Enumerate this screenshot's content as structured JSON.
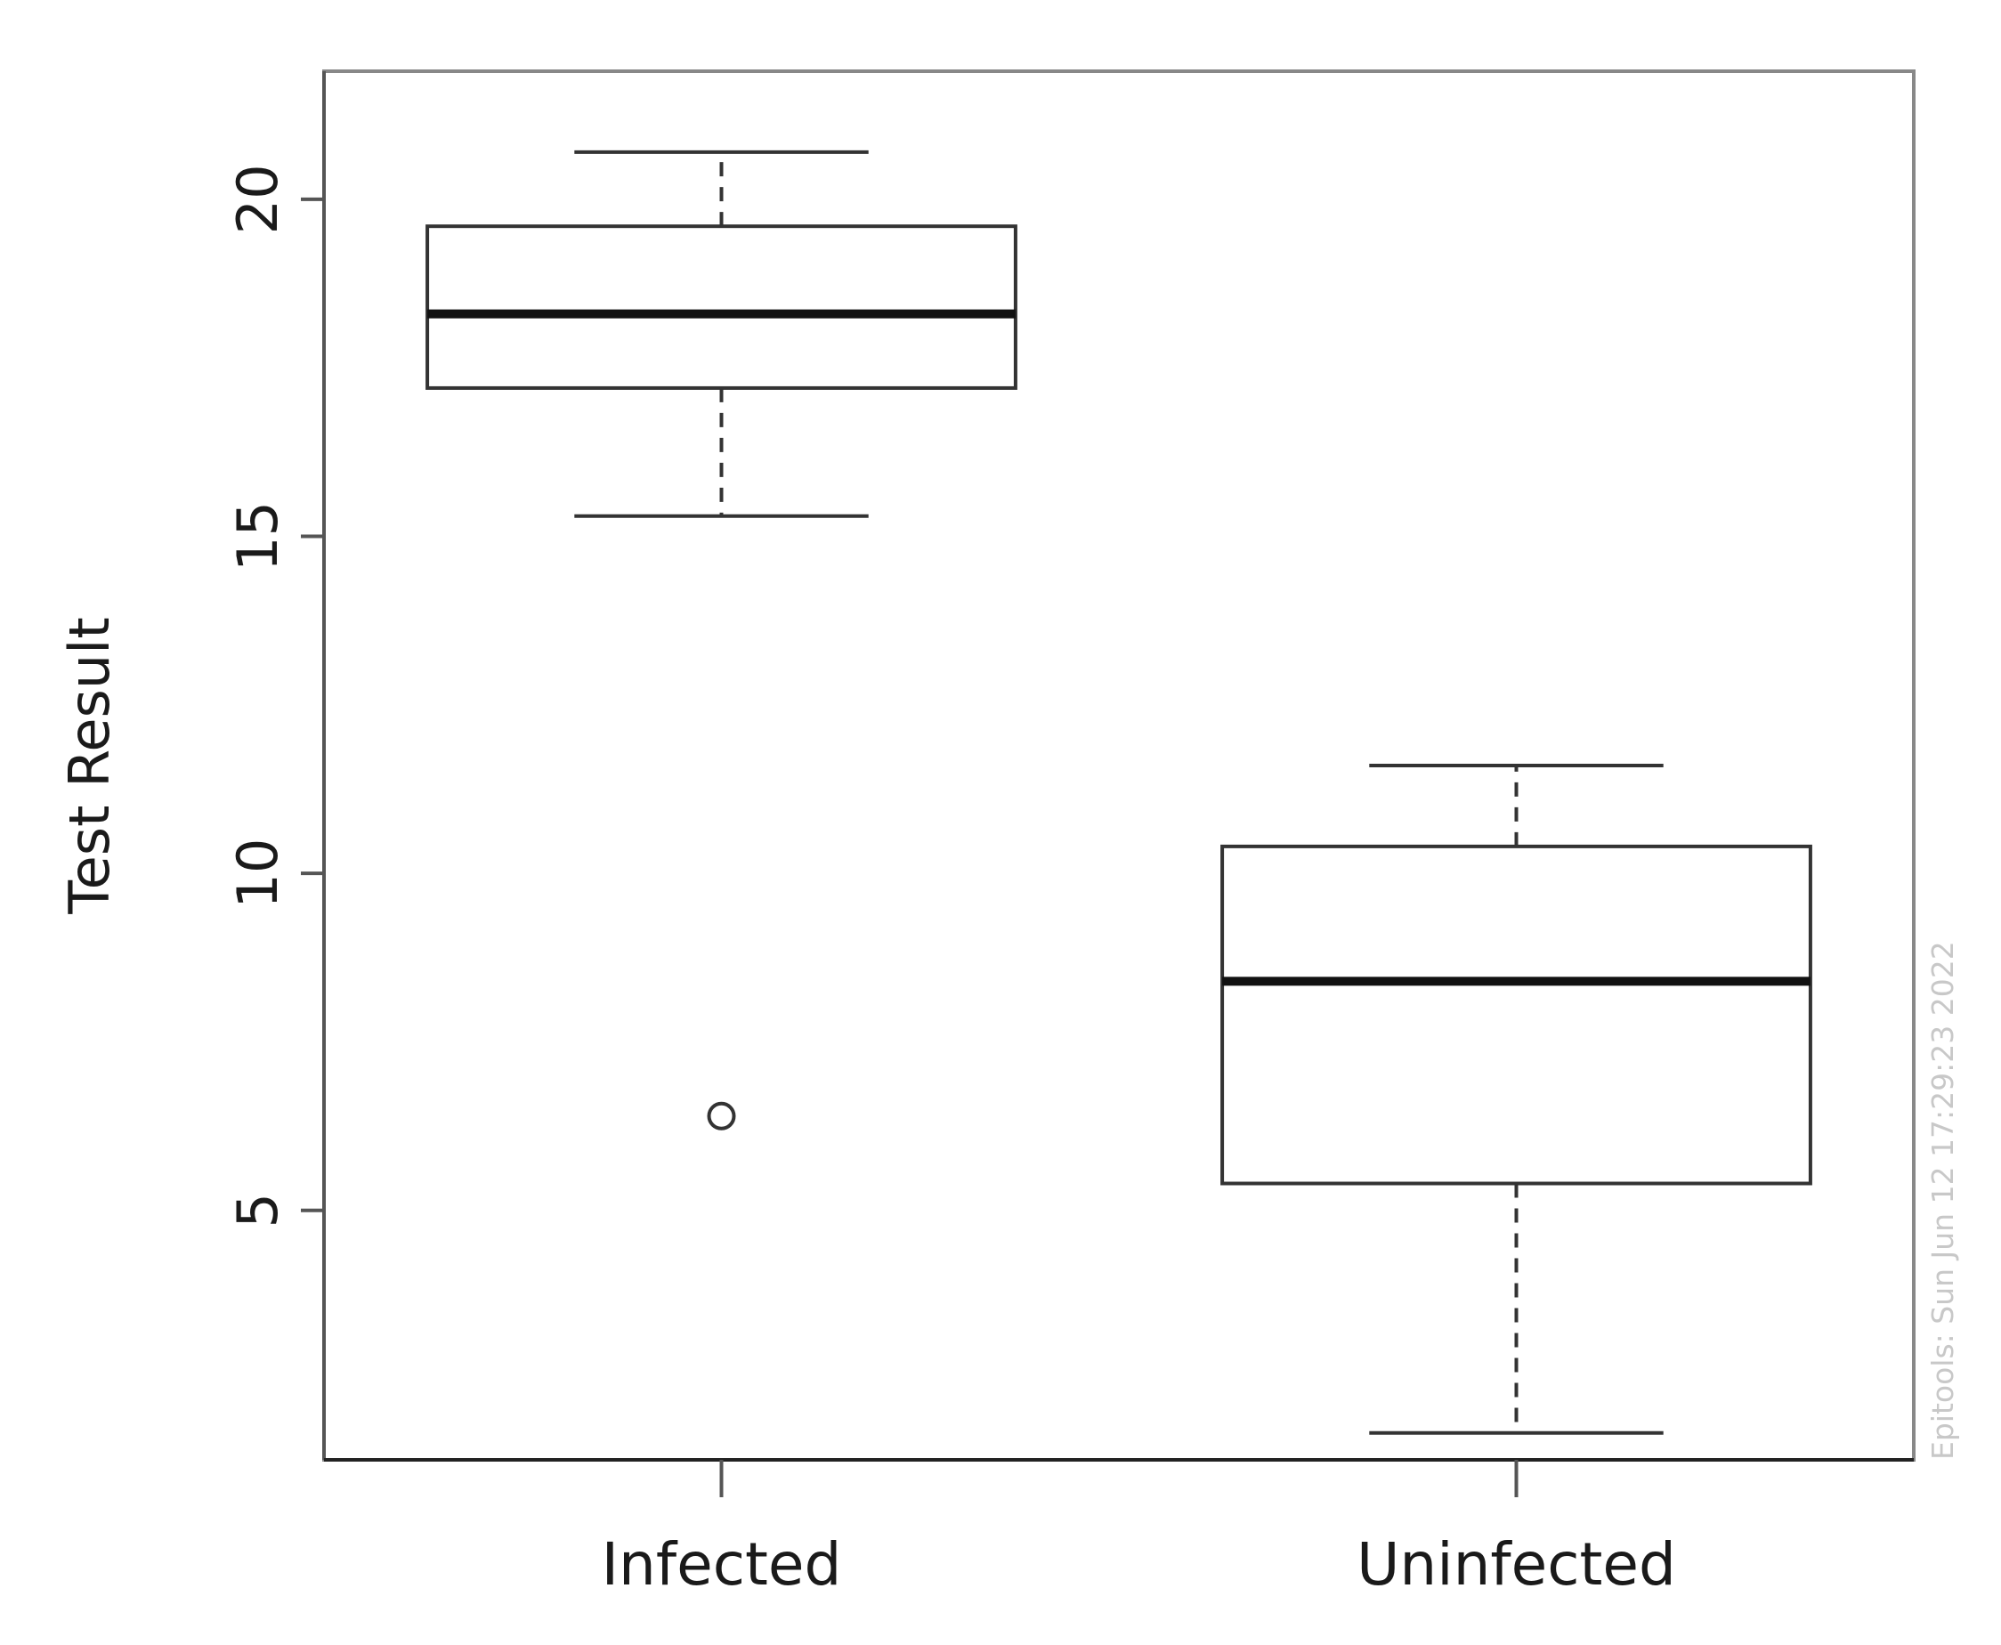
{
  "chart_data": {
    "type": "boxplot",
    "title": "",
    "xlabel": "",
    "ylabel": "Test Result",
    "ylim": [
      1.3,
      21.9
    ],
    "yticks": [
      5,
      10,
      15,
      20
    ],
    "grid": false,
    "categories": [
      "Infected",
      "Uninfected"
    ],
    "boxes": [
      {
        "category": "Infected",
        "whisker_low": 15.3,
        "q1": 17.2,
        "median": 18.3,
        "q3": 19.6,
        "whisker_high": 20.7,
        "outliers": [
          6.4
        ]
      },
      {
        "category": "Uninfected",
        "whisker_low": 1.7,
        "q1": 5.4,
        "median": 8.4,
        "q3": 10.4,
        "whisker_high": 11.6,
        "outliers": []
      }
    ],
    "colors": {
      "box_fill": "#ffffff",
      "stroke": "#333333",
      "median": "#111111",
      "watermark": "#c8c8c8"
    }
  },
  "watermark": "Epitools: Sun Jun 12 17:29:23 2022"
}
